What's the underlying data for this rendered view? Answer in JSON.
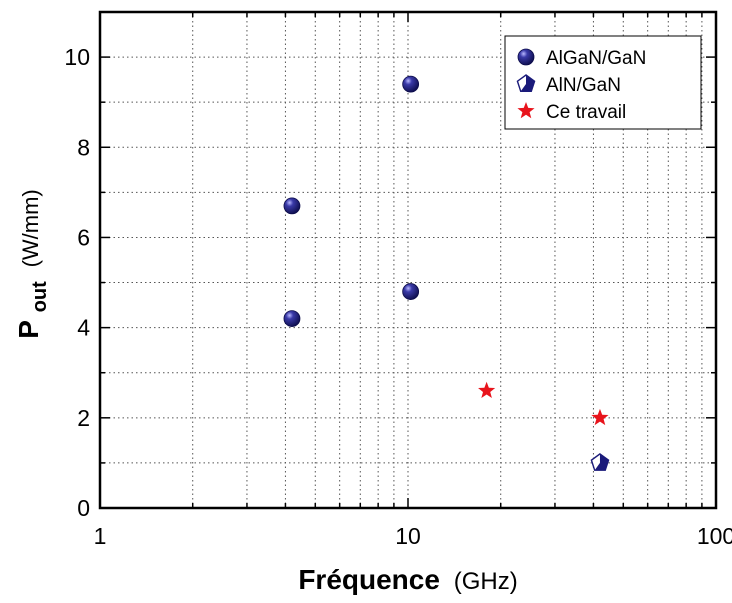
{
  "chart_data": {
    "type": "scatter",
    "xlabel": {
      "main": "Fréquence",
      "unit": "(GHz)"
    },
    "ylabel": {
      "base": "P",
      "subscript": "out",
      "unit": "(W/mm)"
    },
    "x_scale": "log",
    "xlim": [
      1,
      100
    ],
    "ylim": [
      0,
      11
    ],
    "x_ticks": [
      1,
      10,
      100
    ],
    "x_tick_labels": [
      "1",
      "10",
      "100"
    ],
    "y_ticks": [
      0,
      2,
      4,
      6,
      8,
      10
    ],
    "y_tick_labels": [
      "0",
      "2",
      "4",
      "6",
      "8",
      "10"
    ],
    "grid": true,
    "legend_position": "top-right",
    "series": [
      {
        "name": "AlGaN/GaN",
        "marker": "sphere",
        "color": "#1a1a7a",
        "points": [
          {
            "x": 4.2,
            "y": 6.7
          },
          {
            "x": 4.2,
            "y": 4.2
          },
          {
            "x": 10.2,
            "y": 9.4
          },
          {
            "x": 10.2,
            "y": 4.8
          }
        ]
      },
      {
        "name": "AlN/GaN",
        "marker": "pentagon",
        "color": "#1a1a7a",
        "points": [
          {
            "x": 42,
            "y": 1.0
          }
        ]
      },
      {
        "name": "Ce travail",
        "marker": "star",
        "color": "#e8141c",
        "points": [
          {
            "x": 18,
            "y": 2.6
          },
          {
            "x": 42,
            "y": 2.0
          }
        ]
      }
    ]
  }
}
